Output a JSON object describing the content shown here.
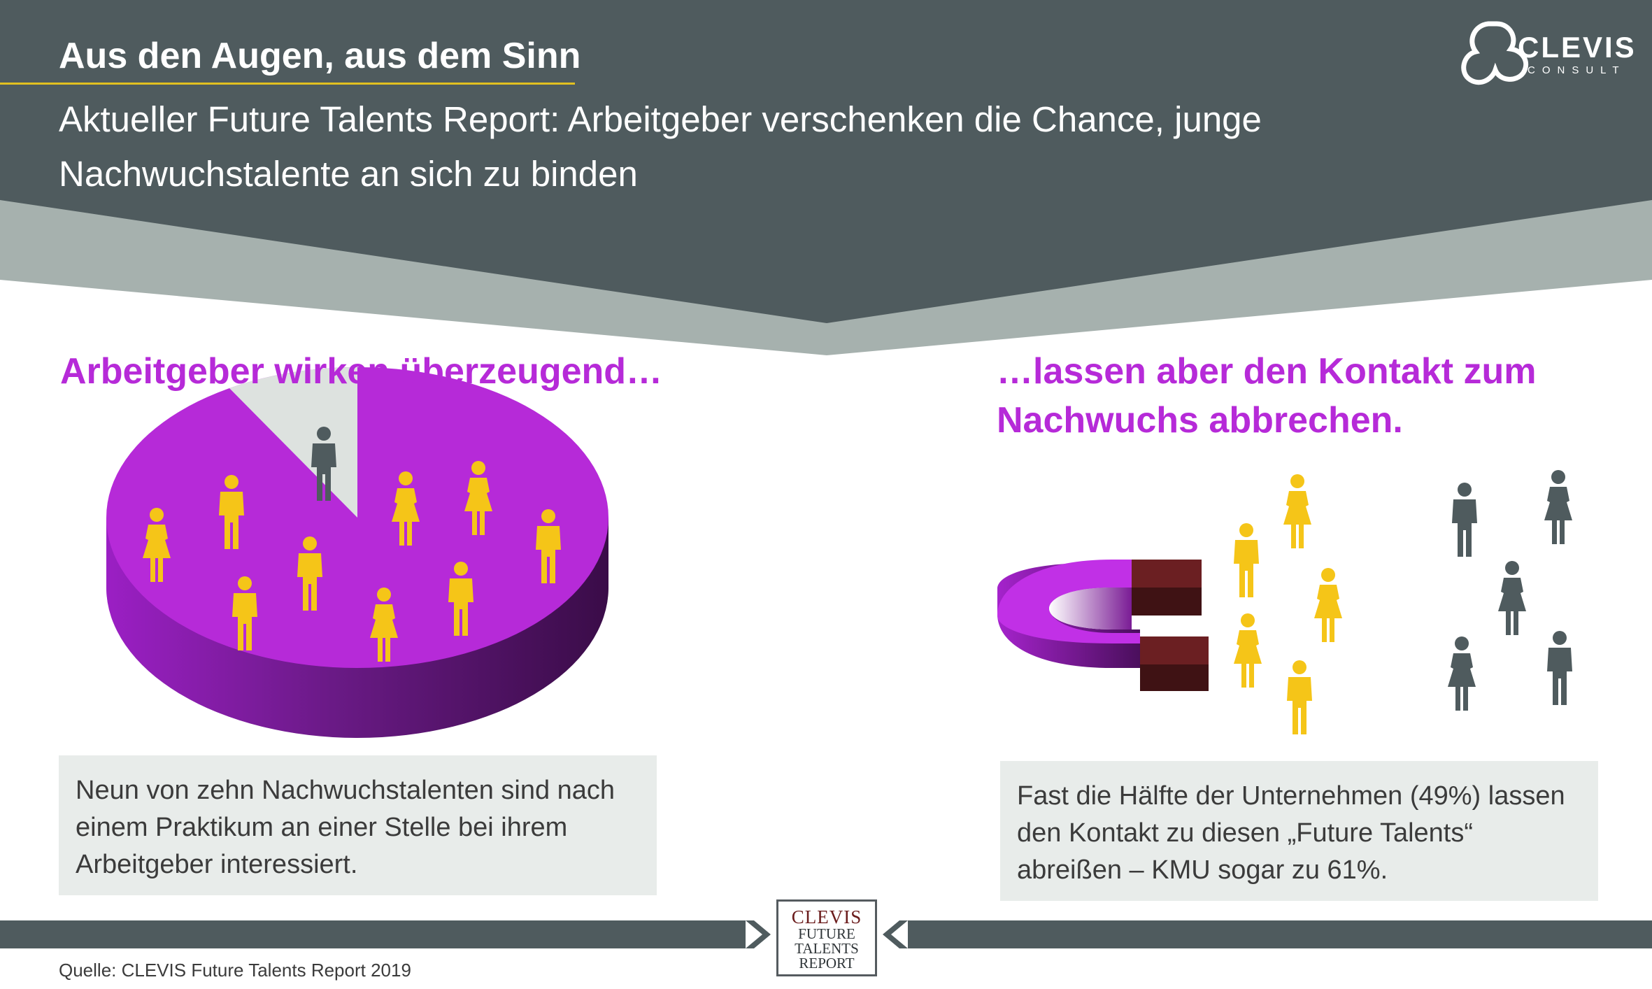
{
  "header": {
    "title": "Aus den Augen, aus dem Sinn",
    "subtitle": "Aktueller Future Talents Report: Arbeitgeber verschenken die Chance, junge Nachwuchstalente an sich zu binden",
    "logo_name": "CLEVIS",
    "logo_sub": "CONSULT"
  },
  "left": {
    "heading": "Arbeitgeber wirken überzeugend…",
    "text": "Neun von zehn Nachwuchstalenten sind nach einem Praktikum an einer Stelle bei ihrem Arbeitgeber interessiert.",
    "pie_share_interested": 0.9
  },
  "right": {
    "heading": "…lassen aber den Kontakt zum Nachwuchs abbrechen.",
    "text": "Fast die Hälfte der Unternehmen (49%) lassen den Kontakt zu diesen „Future Talents“ abreißen – KMU sogar zu 61%."
  },
  "footer": {
    "source": "Quelle: CLEVIS Future Talents Report 2019",
    "badge_line1": "CLEVIS",
    "badge_line2": "FUTURE",
    "badge_line3": "TALENTS",
    "badge_line4": "REPORT"
  },
  "colors": {
    "header_dark": "#4f5b5e",
    "header_light": "#a6b1ae",
    "purple": "#b62ad8",
    "yellow": "#f5c518",
    "gray_figure": "#4f5b5e",
    "magnet_tip": "#5a1a1d"
  }
}
